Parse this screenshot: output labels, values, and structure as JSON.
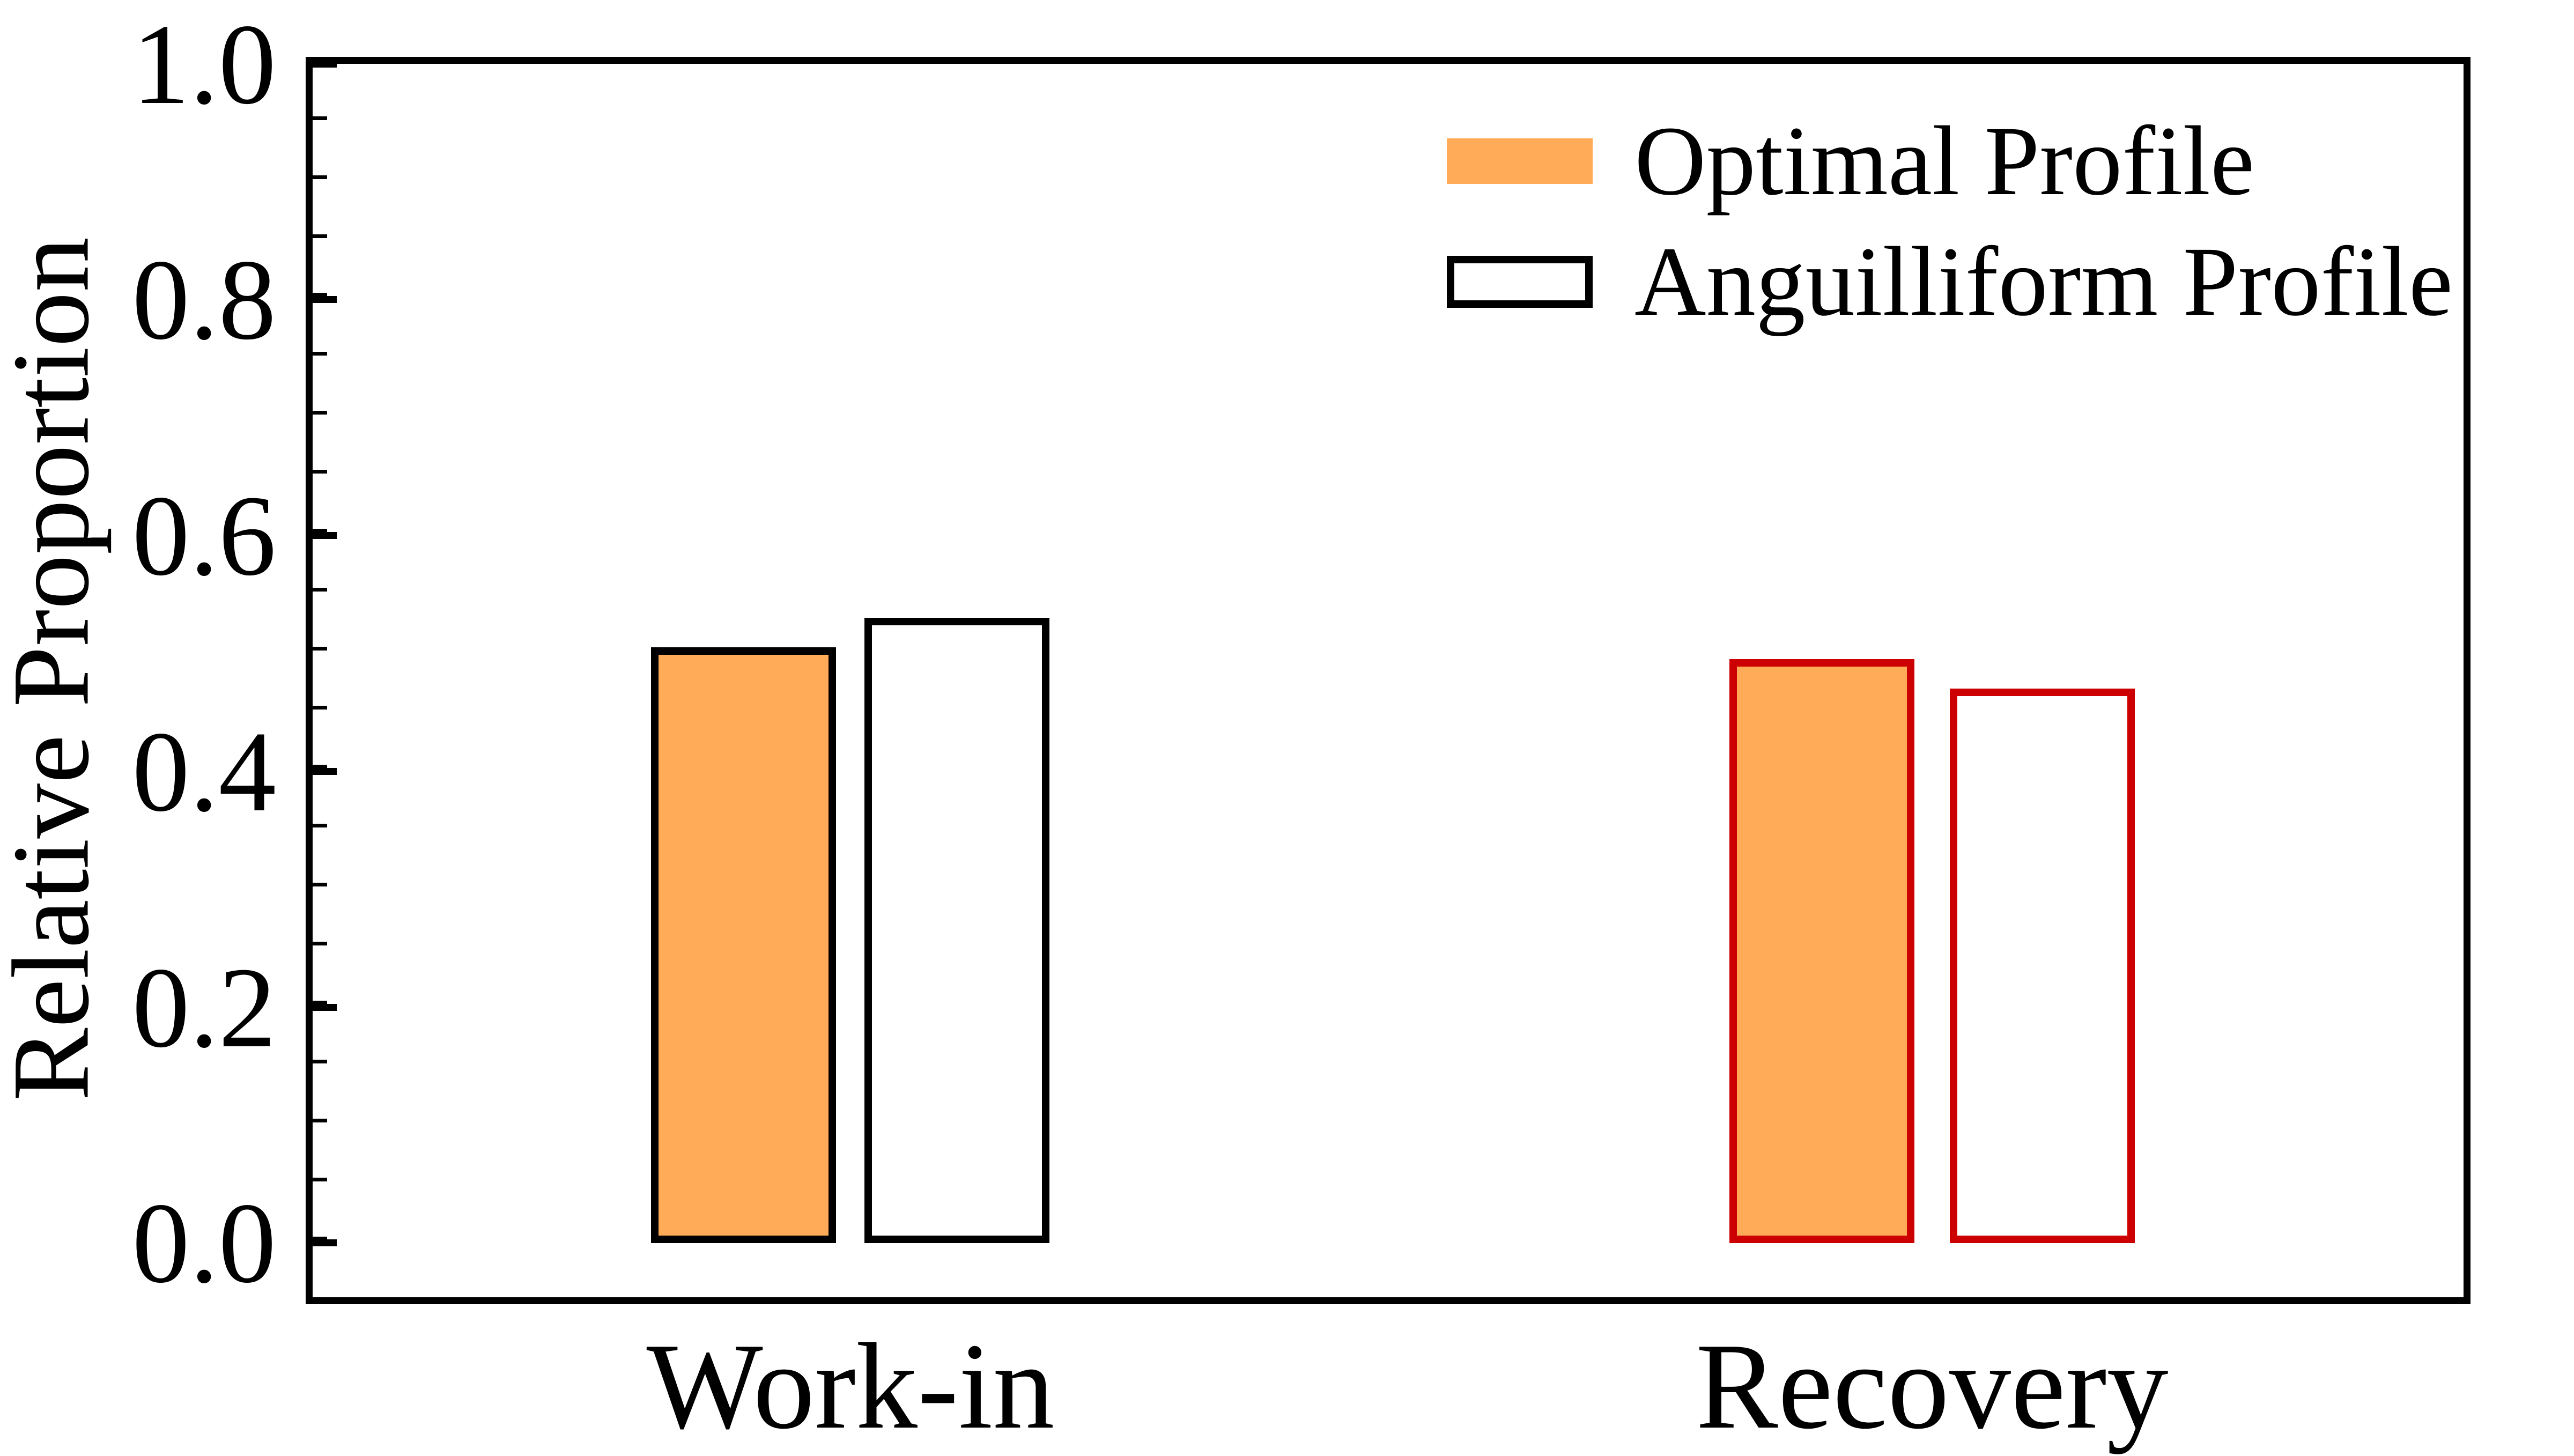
{
  "chart_data": {
    "type": "bar",
    "title": "",
    "xlabel": "",
    "ylabel": "Relative Proportion",
    "categories": [
      "Work-in",
      "Recovery"
    ],
    "series": [
      {
        "name": "Optimal Profile",
        "fill": "#FFAB58",
        "values": [
          0.505,
          0.495
        ]
      },
      {
        "name": "Anguilliform Profile",
        "fill": "#FFFFFF",
        "values": [
          0.53,
          0.47
        ]
      }
    ],
    "category_edge_colors": [
      "#000000",
      "#CC0000"
    ],
    "ylim": [
      -0.046,
      1.0
    ],
    "yticks": [
      0.0,
      0.2,
      0.4,
      0.6,
      0.8,
      1.0
    ],
    "ytick_labels": [
      "0.0",
      "0.2",
      "0.4",
      "0.6",
      "0.8",
      "1.0"
    ],
    "minor_tick_step": 0.05,
    "grid": false,
    "legend_position": "upper right",
    "legend": [
      {
        "label": "Optimal Profile",
        "fill": "#FFAB58",
        "edge": null
      },
      {
        "label": "Anguilliform Profile",
        "fill": "#FFFFFF",
        "edge": "#000000"
      }
    ]
  },
  "colors": {
    "axis": "#000000",
    "background": "#FFFFFF",
    "workin_edge": "#000000",
    "recovery_edge": "#CC0000",
    "optimal_fill": "#FFAB58"
  }
}
